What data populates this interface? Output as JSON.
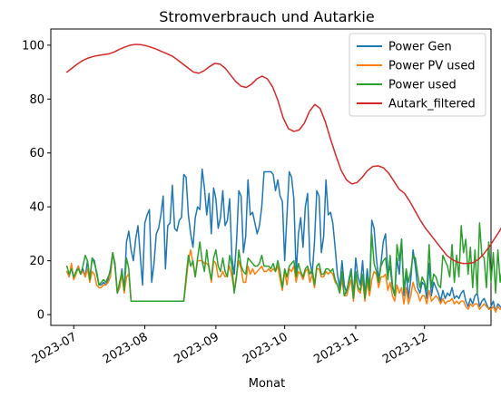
{
  "chart_data": {
    "type": "line",
    "title": "Stromverbrauch und Autarkie",
    "xlabel": "Monat",
    "ylabel": "",
    "x_start": "2023-06-28",
    "x_ticks": [
      {
        "date": "2023-07-01",
        "label": "2023-07"
      },
      {
        "date": "2023-08-01",
        "label": "2023-08"
      },
      {
        "date": "2023-09-01",
        "label": "2023-09"
      },
      {
        "date": "2023-10-01",
        "label": "2023-10"
      },
      {
        "date": "2023-11-01",
        "label": "2023-11"
      },
      {
        "date": "2023-12-01",
        "label": "2023-12"
      }
    ],
    "xlim": [
      "2023-06-21",
      "2023-12-30"
    ],
    "ylim": [
      -4,
      106
    ],
    "y_ticks": [
      0,
      20,
      40,
      60,
      80,
      100
    ],
    "grid": false,
    "legend_position": "upper right",
    "series": [
      {
        "name": "Power Gen",
        "color": "#1f77b4",
        "values": [
          16,
          14,
          18,
          13,
          16,
          18,
          15,
          17,
          14,
          20,
          13,
          21,
          20,
          15,
          11,
          11,
          12,
          11,
          13,
          17,
          23,
          19,
          8,
          10,
          17,
          9,
          27,
          31,
          24,
          20,
          28,
          33,
          22,
          11,
          34,
          37,
          39,
          12,
          19,
          30,
          32,
          37,
          44,
          17,
          33,
          34,
          48,
          32,
          31,
          35,
          36,
          52,
          51,
          37,
          30,
          25,
          36,
          40,
          39,
          54,
          47,
          37,
          45,
          30,
          47,
          43,
          32,
          36,
          46,
          33,
          35,
          43,
          21,
          15,
          27,
          46,
          44,
          23,
          29,
          50,
          37,
          38,
          34,
          30,
          33,
          40,
          53,
          53,
          53,
          53,
          52,
          46,
          50,
          44,
          42,
          20,
          37,
          53,
          51,
          43,
          15,
          30,
          36,
          25,
          40,
          45,
          20,
          15,
          27,
          46,
          44,
          23,
          29,
          50,
          37,
          38,
          34,
          25,
          15,
          10,
          20,
          11,
          8,
          13,
          17,
          7,
          21,
          14,
          11,
          20,
          7,
          17,
          9,
          35,
          32,
          21,
          13,
          19,
          27,
          30,
          15,
          18,
          10,
          7,
          21,
          15,
          28,
          7,
          16,
          6,
          13,
          24,
          18,
          10,
          8,
          12,
          11,
          6,
          19,
          7,
          12,
          10,
          8,
          5,
          9,
          6,
          8,
          7,
          10,
          6,
          7,
          6,
          8,
          9,
          5,
          3,
          6,
          4,
          7,
          8,
          3,
          5,
          6,
          4,
          2,
          3,
          5,
          1,
          4,
          3,
          2,
          4
        ]
      },
      {
        "name": "Power PV used",
        "color": "#ff7f0e",
        "values": [
          16,
          14,
          19,
          13,
          15,
          18,
          15,
          16,
          14,
          17,
          12,
          16,
          15,
          11,
          10,
          10,
          11,
          11,
          12,
          14,
          23,
          18,
          8,
          10,
          15,
          8,
          14,
          15,
          5,
          5,
          5,
          5,
          5,
          5,
          5,
          5,
          5,
          5,
          5,
          5,
          5,
          5,
          5,
          5,
          5,
          5,
          5,
          5,
          5,
          5,
          5,
          5,
          12,
          20,
          24,
          19,
          14,
          20,
          20,
          20,
          19,
          19,
          18,
          12,
          20,
          19,
          14,
          14,
          16,
          14,
          15,
          18,
          14,
          9,
          15,
          20,
          17,
          12,
          12,
          18,
          15,
          17,
          15,
          16,
          17,
          18,
          16,
          16,
          17,
          16,
          17,
          16,
          18,
          13,
          9,
          16,
          11,
          17,
          16,
          18,
          12,
          16,
          15,
          13,
          16,
          17,
          12,
          15,
          10,
          17,
          17,
          14,
          14,
          16,
          15,
          16,
          15,
          12,
          11,
          8,
          13,
          7,
          7,
          10,
          13,
          5,
          14,
          9,
          8,
          13,
          5,
          12,
          7,
          13,
          16,
          15,
          10,
          14,
          14,
          15,
          9,
          12,
          7,
          5,
          11,
          8,
          10,
          4,
          10,
          4,
          7,
          12,
          9,
          8,
          5,
          7,
          7,
          4,
          9,
          5,
          6,
          7,
          6,
          4,
          6,
          4,
          5,
          5,
          6,
          4,
          5,
          4,
          5,
          5,
          3,
          2,
          4,
          3,
          4,
          4,
          2,
          3,
          4,
          3,
          2,
          2,
          3,
          1,
          3,
          2,
          2,
          3
        ]
      },
      {
        "name": "Power used",
        "color": "#2ca02c",
        "values": [
          18,
          15,
          17,
          14,
          16,
          17,
          15,
          18,
          22,
          20,
          13,
          21,
          19,
          16,
          11,
          12,
          13,
          12,
          14,
          16,
          23,
          18,
          8,
          12,
          16,
          9,
          21,
          17,
          5,
          5,
          5,
          5,
          5,
          5,
          5,
          5,
          5,
          5,
          5,
          5,
          5,
          5,
          5,
          5,
          5,
          5,
          5,
          5,
          5,
          5,
          5,
          5,
          14,
          22,
          18,
          20,
          14,
          21,
          27,
          20,
          16,
          24,
          17,
          13,
          21,
          24,
          18,
          16,
          21,
          16,
          14,
          22,
          18,
          8,
          14,
          24,
          18,
          16,
          15,
          21,
          20,
          19,
          18,
          18,
          19,
          22,
          18,
          18,
          18,
          17,
          19,
          16,
          20,
          16,
          10,
          17,
          14,
          18,
          19,
          20,
          14,
          19,
          16,
          14,
          17,
          18,
          15,
          17,
          11,
          18,
          19,
          15,
          15,
          17,
          17,
          16,
          17,
          13,
          11,
          8,
          16,
          7,
          9,
          12,
          16,
          6,
          16,
          10,
          9,
          15,
          6,
          14,
          9,
          30,
          19,
          16,
          12,
          18,
          20,
          21,
          13,
          22,
          11,
          7,
          26,
          20,
          28,
          9,
          17,
          12,
          16,
          22,
          21,
          15,
          10,
          14,
          12,
          9,
          26,
          10,
          15,
          14,
          11,
          10,
          22,
          20,
          18,
          14,
          26,
          12,
          22,
          14,
          33,
          23,
          28,
          15,
          25,
          10,
          24,
          8,
          34,
          22,
          21,
          10,
          27,
          12,
          23,
          8,
          24,
          12,
          18,
          9
        ]
      },
      {
        "name": "Autark_filtered",
        "color": "#d62728",
        "values": [
          90,
          91.5,
          93,
          94.3,
          95.2,
          95.8,
          96.2,
          96.5,
          96.8,
          97.5,
          98.5,
          99.3,
          100,
          100.3,
          100.2,
          99.8,
          99.2,
          98.5,
          97.6,
          96.8,
          95.9,
          94.5,
          93,
          91.5,
          90,
          89.6,
          90.5,
          92,
          93.2,
          93,
          91.5,
          89,
          86.5,
          84.8,
          84.3,
          85.5,
          87.5,
          88.5,
          87.5,
          84.5,
          79.5,
          73,
          69,
          68,
          68.5,
          71,
          75.5,
          78,
          76.5,
          71.5,
          65,
          59,
          53.5,
          50,
          48.5,
          49,
          51,
          53.5,
          55,
          55.2,
          54.5,
          52.5,
          49.5,
          46.5,
          45,
          42,
          38.5,
          35,
          32,
          29.5,
          27,
          24.5,
          22,
          20.5,
          19.5,
          19,
          19,
          19.3,
          20.5,
          22.5,
          25,
          28,
          31,
          34.5
        ]
      }
    ]
  }
}
